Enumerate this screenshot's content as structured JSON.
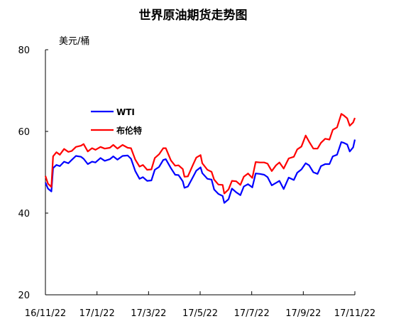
{
  "chart_data": {
    "type": "line",
    "title": "世界原油期货走势图",
    "ylabel": "美元/桶",
    "xlabel": "",
    "ylim": [
      20,
      80
    ],
    "yticks": [
      20,
      40,
      60,
      80
    ],
    "xlim": [
      "2016-11-22",
      "2017-11-22"
    ],
    "xtick_labels": [
      "16/11/22",
      "17/1/22",
      "17/3/22",
      "17/5/22",
      "17/7/22",
      "17/9/22",
      "17/11/22"
    ],
    "grid": false,
    "legend_position": "upper-left",
    "series": [
      {
        "name": "WTI",
        "color": "#0000ff",
        "points": [
          [
            "2016-11-22",
            47.5
          ],
          [
            "2016-11-25",
            46.0
          ],
          [
            "2016-11-29",
            45.3
          ],
          [
            "2016-12-01",
            51.0
          ],
          [
            "2016-12-05",
            51.8
          ],
          [
            "2016-12-09",
            51.5
          ],
          [
            "2016-12-14",
            52.6
          ],
          [
            "2016-12-19",
            52.2
          ],
          [
            "2016-12-23",
            53.0
          ],
          [
            "2016-12-28",
            54.0
          ],
          [
            "2017-01-03",
            53.8
          ],
          [
            "2017-01-06",
            53.3
          ],
          [
            "2017-01-11",
            52.0
          ],
          [
            "2017-01-16",
            52.6
          ],
          [
            "2017-01-20",
            52.4
          ],
          [
            "2017-01-26",
            53.5
          ],
          [
            "2017-01-31",
            52.8
          ],
          [
            "2017-02-06",
            53.2
          ],
          [
            "2017-02-10",
            53.9
          ],
          [
            "2017-02-15",
            53.1
          ],
          [
            "2017-02-21",
            54.0
          ],
          [
            "2017-02-27",
            54.1
          ],
          [
            "2017-03-03",
            53.3
          ],
          [
            "2017-03-08",
            50.3
          ],
          [
            "2017-03-13",
            48.4
          ],
          [
            "2017-03-17",
            48.8
          ],
          [
            "2017-03-22",
            47.9
          ],
          [
            "2017-03-27",
            48.0
          ],
          [
            "2017-03-31",
            50.6
          ],
          [
            "2017-04-05",
            51.3
          ],
          [
            "2017-04-10",
            53.0
          ],
          [
            "2017-04-13",
            53.2
          ],
          [
            "2017-04-19",
            51.0
          ],
          [
            "2017-04-24",
            49.4
          ],
          [
            "2017-04-28",
            49.3
          ],
          [
            "2017-05-03",
            47.8
          ],
          [
            "2017-05-05",
            46.2
          ],
          [
            "2017-05-09",
            46.5
          ],
          [
            "2017-05-15",
            48.8
          ],
          [
            "2017-05-19",
            50.4
          ],
          [
            "2017-05-24",
            51.2
          ],
          [
            "2017-05-26",
            49.8
          ],
          [
            "2017-06-01",
            48.4
          ],
          [
            "2017-06-06",
            48.2
          ],
          [
            "2017-06-09",
            45.8
          ],
          [
            "2017-06-14",
            44.7
          ],
          [
            "2017-06-19",
            44.2
          ],
          [
            "2017-06-21",
            42.5
          ],
          [
            "2017-06-26",
            43.4
          ],
          [
            "2017-06-30",
            46.0
          ],
          [
            "2017-07-05",
            45.1
          ],
          [
            "2017-07-10",
            44.4
          ],
          [
            "2017-07-14",
            46.5
          ],
          [
            "2017-07-19",
            47.1
          ],
          [
            "2017-07-24",
            46.3
          ],
          [
            "2017-07-28",
            49.7
          ],
          [
            "2017-08-02",
            49.6
          ],
          [
            "2017-08-07",
            49.4
          ],
          [
            "2017-08-11",
            48.8
          ],
          [
            "2017-08-16",
            46.8
          ],
          [
            "2017-08-21",
            47.4
          ],
          [
            "2017-08-25",
            47.9
          ],
          [
            "2017-08-30",
            45.9
          ],
          [
            "2017-09-05",
            48.7
          ],
          [
            "2017-09-11",
            48.1
          ],
          [
            "2017-09-15",
            49.9
          ],
          [
            "2017-09-20",
            50.7
          ],
          [
            "2017-09-25",
            52.2
          ],
          [
            "2017-09-29",
            51.7
          ],
          [
            "2017-10-04",
            50.0
          ],
          [
            "2017-10-09",
            49.6
          ],
          [
            "2017-10-13",
            51.5
          ],
          [
            "2017-10-18",
            52.0
          ],
          [
            "2017-10-23",
            52.0
          ],
          [
            "2017-10-27",
            53.9
          ],
          [
            "2017-11-01",
            54.3
          ],
          [
            "2017-11-06",
            57.4
          ],
          [
            "2017-11-09",
            57.2
          ],
          [
            "2017-11-13",
            56.8
          ],
          [
            "2017-11-16",
            55.1
          ],
          [
            "2017-11-20",
            56.1
          ],
          [
            "2017-11-22",
            58.0
          ]
        ]
      },
      {
        "name": "布伦特",
        "color": "#ff0000",
        "points": [
          [
            "2016-11-22",
            49.1
          ],
          [
            "2016-11-25",
            47.2
          ],
          [
            "2016-11-29",
            46.4
          ],
          [
            "2016-12-01",
            53.9
          ],
          [
            "2016-12-05",
            54.9
          ],
          [
            "2016-12-09",
            54.3
          ],
          [
            "2016-12-14",
            55.7
          ],
          [
            "2016-12-19",
            55.0
          ],
          [
            "2016-12-23",
            55.2
          ],
          [
            "2016-12-28",
            56.2
          ],
          [
            "2017-01-03",
            56.5
          ],
          [
            "2017-01-06",
            56.9
          ],
          [
            "2017-01-11",
            55.1
          ],
          [
            "2017-01-16",
            55.9
          ],
          [
            "2017-01-20",
            55.5
          ],
          [
            "2017-01-26",
            56.2
          ],
          [
            "2017-01-31",
            55.8
          ],
          [
            "2017-02-06",
            56.0
          ],
          [
            "2017-02-10",
            56.7
          ],
          [
            "2017-02-15",
            55.8
          ],
          [
            "2017-02-21",
            56.7
          ],
          [
            "2017-02-27",
            56.0
          ],
          [
            "2017-03-03",
            55.9
          ],
          [
            "2017-03-08",
            53.1
          ],
          [
            "2017-03-13",
            51.4
          ],
          [
            "2017-03-17",
            51.8
          ],
          [
            "2017-03-22",
            50.6
          ],
          [
            "2017-03-27",
            50.7
          ],
          [
            "2017-03-31",
            53.5
          ],
          [
            "2017-04-05",
            54.4
          ],
          [
            "2017-04-10",
            55.9
          ],
          [
            "2017-04-13",
            55.9
          ],
          [
            "2017-04-19",
            52.9
          ],
          [
            "2017-04-24",
            51.6
          ],
          [
            "2017-04-28",
            51.7
          ],
          [
            "2017-05-03",
            50.8
          ],
          [
            "2017-05-05",
            48.9
          ],
          [
            "2017-05-09",
            49.0
          ],
          [
            "2017-05-15",
            51.8
          ],
          [
            "2017-05-19",
            53.6
          ],
          [
            "2017-05-24",
            54.2
          ],
          [
            "2017-05-26",
            52.2
          ],
          [
            "2017-06-01",
            50.6
          ],
          [
            "2017-06-06",
            50.1
          ],
          [
            "2017-06-09",
            48.2
          ],
          [
            "2017-06-14",
            47.0
          ],
          [
            "2017-06-19",
            46.9
          ],
          [
            "2017-06-21",
            44.8
          ],
          [
            "2017-06-26",
            45.8
          ],
          [
            "2017-06-30",
            47.9
          ],
          [
            "2017-07-05",
            47.8
          ],
          [
            "2017-07-10",
            46.9
          ],
          [
            "2017-07-14",
            48.9
          ],
          [
            "2017-07-19",
            49.7
          ],
          [
            "2017-07-24",
            48.6
          ],
          [
            "2017-07-28",
            52.5
          ],
          [
            "2017-08-02",
            52.4
          ],
          [
            "2017-08-07",
            52.4
          ],
          [
            "2017-08-11",
            52.1
          ],
          [
            "2017-08-16",
            50.3
          ],
          [
            "2017-08-21",
            51.7
          ],
          [
            "2017-08-25",
            52.4
          ],
          [
            "2017-08-30",
            50.9
          ],
          [
            "2017-09-05",
            53.4
          ],
          [
            "2017-09-11",
            53.8
          ],
          [
            "2017-09-15",
            55.6
          ],
          [
            "2017-09-20",
            56.3
          ],
          [
            "2017-09-25",
            59.0
          ],
          [
            "2017-09-29",
            57.5
          ],
          [
            "2017-10-04",
            55.8
          ],
          [
            "2017-10-09",
            55.8
          ],
          [
            "2017-10-13",
            57.2
          ],
          [
            "2017-10-18",
            58.2
          ],
          [
            "2017-10-23",
            58.0
          ],
          [
            "2017-10-27",
            60.4
          ],
          [
            "2017-11-01",
            61.0
          ],
          [
            "2017-11-06",
            64.3
          ],
          [
            "2017-11-09",
            63.9
          ],
          [
            "2017-11-13",
            63.2
          ],
          [
            "2017-11-16",
            61.4
          ],
          [
            "2017-11-20",
            62.2
          ],
          [
            "2017-11-22",
            63.3
          ]
        ]
      }
    ]
  }
}
